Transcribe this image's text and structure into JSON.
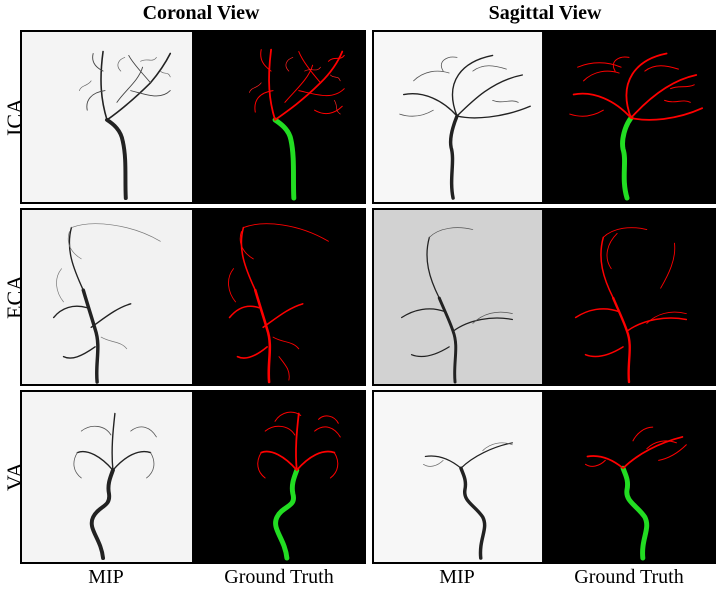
{
  "columns": {
    "coronal": "Coronal View",
    "sagittal": "Sagittal View"
  },
  "rows": [
    {
      "label": "ICA"
    },
    {
      "label": "ECA"
    },
    {
      "label": "VA"
    }
  ],
  "footer": {
    "coronal_mip": "MIP",
    "coronal_gt": "Ground Truth",
    "sagittal_mip": "MIP",
    "sagittal_gt": "Ground Truth"
  },
  "colors": {
    "vessel_red": "#ff0000",
    "vessel_green": "#22dd22",
    "gt_background": "#000000",
    "mip_background": "#f4f4f4",
    "eca_sagittal_background": "#d2d2d2"
  }
}
